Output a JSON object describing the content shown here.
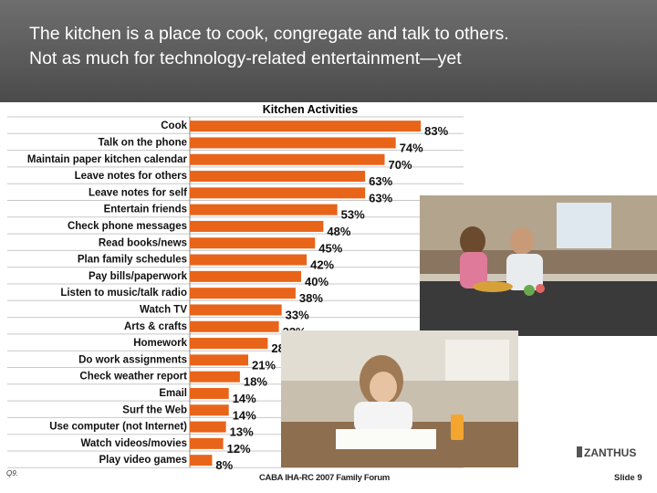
{
  "header": {
    "title_line1": "The kitchen is a place to cook, congregate and talk to others.",
    "title_line2": "Not as much for technology-related entertainment—yet"
  },
  "chart_data": {
    "type": "bar",
    "orientation": "horizontal",
    "title": "Kitchen Activities",
    "categories": [
      "Cook",
      "Talk on the phone",
      "Maintain paper kitchen calendar",
      "Leave notes for others",
      "Leave notes for self",
      "Entertain friends",
      "Check phone messages",
      "Read books/news",
      "Plan family schedules",
      "Pay bills/paperwork",
      "Listen to music/talk radio",
      "Watch TV",
      "Arts & crafts",
      "Homework",
      "Do work assignments",
      "Check weather report",
      "Email",
      "Surf the Web",
      "Use computer (not Internet)",
      "Watch videos/movies",
      "Play video games"
    ],
    "values": [
      83,
      74,
      70,
      63,
      63,
      53,
      48,
      45,
      42,
      40,
      38,
      33,
      32,
      28,
      21,
      18,
      14,
      14,
      13,
      12,
      8
    ],
    "value_labels": [
      "83%",
      "74%",
      "70%",
      "63%",
      "63%",
      "53%",
      "48%",
      "45%",
      "42%",
      "40%",
      "38%",
      "33%",
      "32%",
      "28%",
      "21%",
      "18%",
      "14%",
      "14%",
      "13%",
      "12%",
      "8%"
    ],
    "bar_color": "#e86419",
    "grid": true,
    "legend": "none",
    "xlim": [
      0,
      100
    ]
  },
  "images": {
    "photo1": "kitchen-couple-photo",
    "photo2": "teen-homework-photo"
  },
  "logo": {
    "text": "ZANTHUS"
  },
  "footer": {
    "question": "Q9.",
    "center": "CABA IHA-RC 2007 Family Forum",
    "slide": "Slide 9"
  }
}
